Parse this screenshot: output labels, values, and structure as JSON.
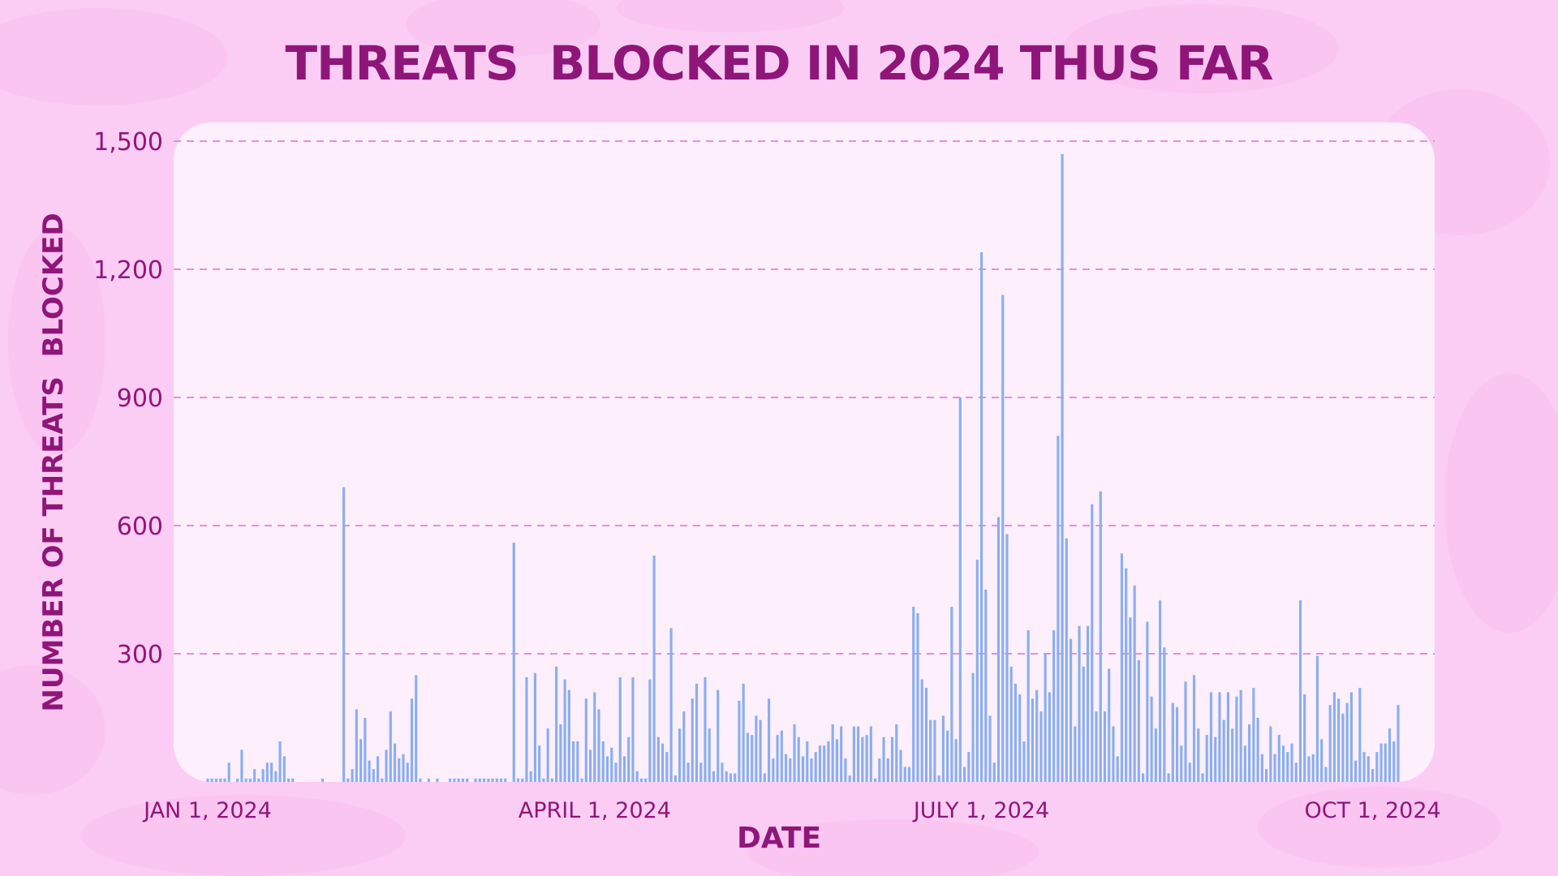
{
  "colors": {
    "background": "#fbcdf4",
    "background_blob": "#f9c2f0",
    "panel": "#fdeffb",
    "title": "#8f1679",
    "tick_label": "#8f1679",
    "grid": "#e68fd9",
    "bar": "#8aaef0"
  },
  "chart_data": {
    "type": "bar",
    "title": "THREATS  BLOCKED IN 2024 THUS FAR",
    "xlabel": "DATE",
    "ylabel": "NUMBER OF THREATS  BLOCKED",
    "ylim": [
      0,
      1500
    ],
    "yticks": [
      300,
      600,
      900,
      1200,
      1500
    ],
    "ytick_labels": [
      "300",
      "600",
      "900",
      "1,200",
      "1,500"
    ],
    "grid": {
      "horizontal": true,
      "style": "dashed"
    },
    "x_range": [
      "2024-01-01",
      "2024-10-04"
    ],
    "xtick_labels": [
      {
        "date": "2024-01-01",
        "label": "JAN 1, 2024"
      },
      {
        "date": "2024-04-01",
        "label": "APRIL 1, 2024"
      },
      {
        "date": "2024-07-01",
        "label": "JULY 1, 2024"
      },
      {
        "date": "2024-10-01",
        "label": "OCT 1, 2024"
      }
    ],
    "series": [
      {
        "values": [
          8,
          8,
          8,
          8,
          8,
          45,
          0,
          8,
          75,
          8,
          8,
          30,
          8,
          30,
          45,
          45,
          25,
          95,
          60,
          8,
          8,
          0,
          0,
          0,
          0,
          0,
          0,
          8,
          0,
          0,
          0,
          0,
          690,
          8,
          30,
          170,
          100,
          150,
          50,
          30,
          60,
          8,
          75,
          165,
          90,
          55,
          65,
          45,
          195,
          250,
          8,
          0,
          8,
          0,
          8,
          0,
          0,
          8,
          8,
          8,
          8,
          8,
          0,
          8,
          8,
          8,
          8,
          8,
          8,
          8,
          8,
          0,
          560,
          8,
          8,
          245,
          25,
          255,
          85,
          8,
          125,
          8,
          270,
          135,
          240,
          215,
          95,
          95,
          8,
          195,
          75,
          210,
          170,
          95,
          60,
          80,
          45,
          245,
          60,
          105,
          245,
          25,
          8,
          8,
          240,
          530,
          105,
          90,
          70,
          360,
          15,
          125,
          165,
          45,
          195,
          230,
          45,
          245,
          125,
          25,
          215,
          45,
          25,
          20,
          20,
          190,
          230,
          115,
          110,
          155,
          145,
          20,
          195,
          55,
          110,
          120,
          65,
          55,
          135,
          105,
          60,
          95,
          55,
          70,
          85,
          85,
          95,
          135,
          100,
          130,
          55,
          15,
          130,
          130,
          105,
          110,
          130,
          8,
          55,
          105,
          55,
          105,
          135,
          75,
          35,
          35,
          410,
          395,
          240,
          220,
          145,
          145,
          15,
          155,
          120,
          410,
          100,
          900,
          35,
          70,
          255,
          520,
          1240,
          450,
          155,
          45,
          620,
          1140,
          580,
          270,
          230,
          205,
          95,
          355,
          195,
          215,
          165,
          300,
          210,
          355,
          810,
          1470,
          570,
          335,
          130,
          365,
          270,
          365,
          650,
          165,
          680,
          165,
          265,
          130,
          60,
          535,
          500,
          385,
          460,
          285,
          20,
          375,
          200,
          125,
          425,
          315,
          20,
          185,
          175,
          85,
          235,
          45,
          250,
          125,
          20,
          110,
          210,
          105,
          210,
          145,
          210,
          125,
          200,
          215,
          85,
          135,
          220,
          150,
          65,
          30,
          130,
          65,
          110,
          85,
          70,
          90,
          45,
          425,
          205,
          60,
          65,
          295,
          100,
          35,
          180,
          210,
          195,
          160,
          185,
          210,
          50,
          220,
          70,
          60,
          30,
          70,
          90,
          90,
          125,
          95,
          180
        ]
      }
    ]
  }
}
